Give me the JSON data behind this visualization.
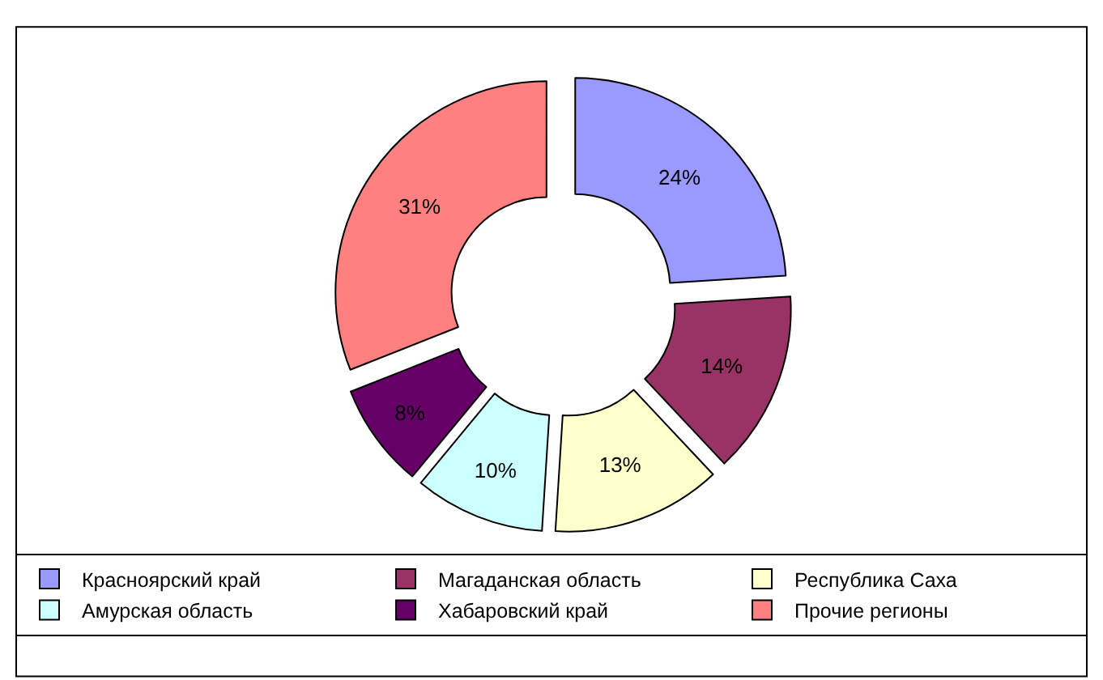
{
  "chart_data": {
    "type": "donut",
    "categories": [
      "Красноярский край",
      "Магаданская область",
      "Республика Саха",
      "Амурская область",
      "Хабаровский край",
      "Прочие регионы"
    ],
    "values": [
      24,
      14,
      13,
      10,
      8,
      31
    ],
    "colors": [
      "#9999ff",
      "#993366",
      "#ffffcc",
      "#ccffff",
      "#660066",
      "#ff8080"
    ],
    "value_labels": [
      "24%",
      "14%",
      "13%",
      "10%",
      "8%",
      "31%"
    ],
    "legend": "bottom"
  }
}
